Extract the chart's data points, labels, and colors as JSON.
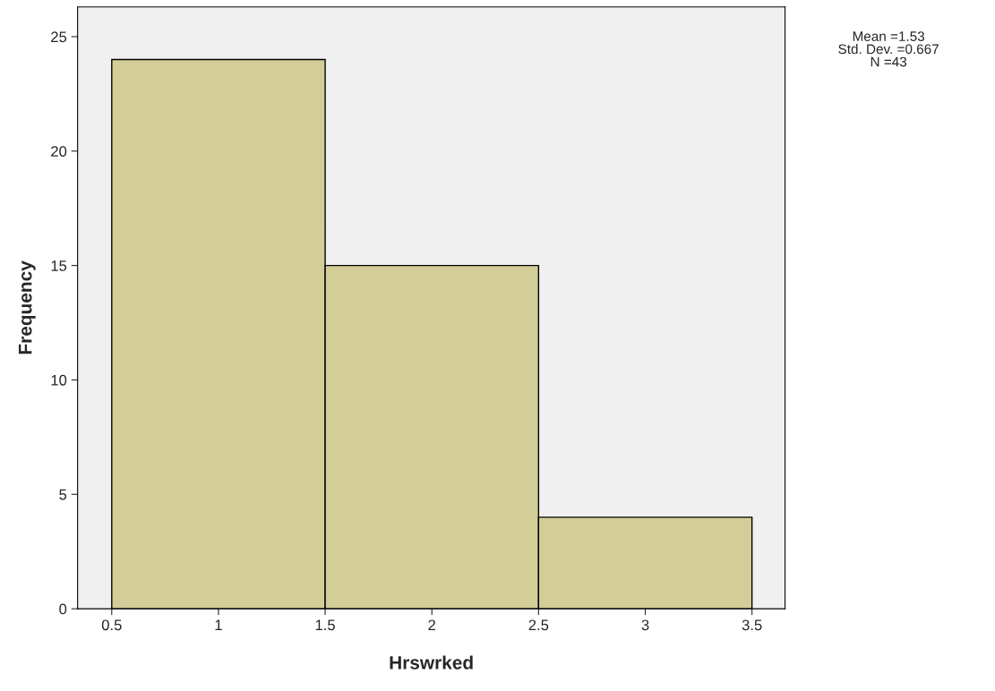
{
  "chart_data": {
    "type": "histogram",
    "xlabel": "Hrswrked",
    "ylabel": "Frequency",
    "bins": [
      0.5,
      1.5,
      2.5,
      3.5
    ],
    "values": [
      24,
      15,
      4
    ],
    "color": "#d3ce97",
    "xlim": [
      0.34,
      3.655
    ],
    "xticks": [
      0.5,
      1,
      1.5,
      2,
      2.5,
      3,
      3.5
    ],
    "ylim": [
      0,
      26.3
    ],
    "yticks": [
      0,
      5,
      10,
      15,
      20,
      25
    ],
    "grid": false,
    "legend": false,
    "annotations": [
      "Mean =1.53\nStd. Dev. =0.667\nN =43"
    ]
  }
}
